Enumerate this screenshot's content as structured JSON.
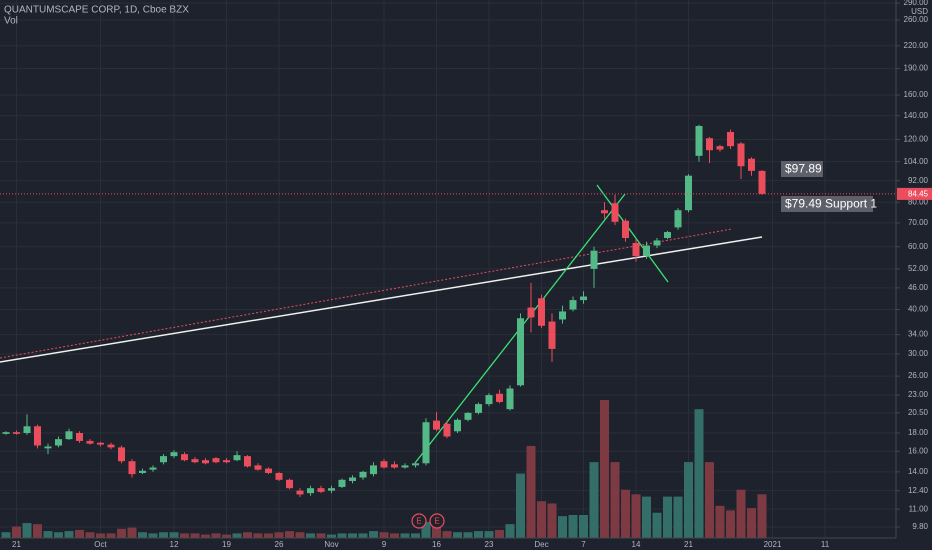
{
  "chart_data": {
    "type": "candlestick",
    "title": "QUANTUMSCAPE CORP, 1D, Cboe BZX",
    "volume_label": "Vol",
    "currency": "USD",
    "log_scale": true,
    "grid": true,
    "up_color": "#53b987",
    "down_color": "#eb4d5c",
    "volume_up_color": "#336f68",
    "volume_down_color": "#7e3a42",
    "categories": [
      null,
      "21",
      null,
      null,
      null,
      null,
      null,
      null,
      null,
      "Oct",
      null,
      null,
      null,
      null,
      null,
      null,
      "12",
      null,
      null,
      null,
      null,
      "19",
      null,
      null,
      null,
      null,
      "26",
      null,
      null,
      null,
      null,
      "Nov",
      null,
      null,
      null,
      null,
      "9",
      null,
      null,
      null,
      null,
      "16",
      null,
      null,
      null,
      null,
      "23",
      null,
      null,
      null,
      null,
      "Dec",
      null,
      null,
      null,
      "7",
      null,
      null,
      null,
      null,
      "14",
      null,
      null,
      null,
      null,
      "21",
      null,
      null,
      null,
      null,
      null,
      null,
      null,
      "2021",
      null,
      null,
      null,
      null,
      "11"
    ],
    "open": [
      17.9,
      18.1,
      18.0,
      18.8,
      16.3,
      16.6,
      17.3,
      18.0,
      17.1,
      16.9,
      16.7,
      16.4,
      15.0,
      13.9,
      14.2,
      14.9,
      15.5,
      15.7,
      15.2,
      15.1,
      15.3,
      15.1,
      15.1,
      15.5,
      14.6,
      14.3,
      13.9,
      13.3,
      12.4,
      12.2,
      12.6,
      12.4,
      12.7,
      13.2,
      13.5,
      13.8,
      15.0,
      14.7,
      14.4,
      14.6,
      14.8,
      19.5,
      19.1,
      18.2,
      19.6,
      20.5,
      21.7,
      23.2,
      21.0,
      24.5,
      40.5,
      43.0,
      37.0,
      37.5,
      40.0,
      42.5,
      52.0,
      76.0,
      79.5,
      71.0,
      61.5,
      56.5,
      60.5,
      63.5,
      68.0,
      76.0,
      108.0,
      121.0,
      115.0,
      126.0,
      117.0,
      106.0,
      98.0,
      null,
      null,
      null,
      null,
      null,
      null
    ],
    "high": [
      18.2,
      18.3,
      20.3,
      19.0,
      16.8,
      17.6,
      18.5,
      18.2,
      17.3,
      17.0,
      16.9,
      16.6,
      15.2,
      14.3,
      14.6,
      15.7,
      16.1,
      15.9,
      15.4,
      15.3,
      15.4,
      15.3,
      16.0,
      15.6,
      14.8,
      14.4,
      14.0,
      13.4,
      12.6,
      12.8,
      12.8,
      12.8,
      13.4,
      13.7,
      14.1,
      14.9,
      15.2,
      15.0,
      14.8,
      14.9,
      19.8,
      20.6,
      19.4,
      19.8,
      20.6,
      21.9,
      23.3,
      23.8,
      24.5,
      39.0,
      47.5,
      44.0,
      39.0,
      41.0,
      43.5,
      45.0,
      60.0,
      80.0,
      84.0,
      72.0,
      63.0,
      62.0,
      63.5,
      66.5,
      77.0,
      96.0,
      132.0,
      122.0,
      116.0,
      128.0,
      118.0,
      107.0,
      98.5,
      null,
      null,
      null,
      null,
      null,
      null
    ],
    "low": [
      17.8,
      17.8,
      17.8,
      16.3,
      15.7,
      16.4,
      17.2,
      16.9,
      16.7,
      16.5,
      16.2,
      14.8,
      13.5,
      13.8,
      14.0,
      14.7,
      15.3,
      15.0,
      14.8,
      14.7,
      14.8,
      14.8,
      15.0,
      14.4,
      14.1,
      13.8,
      13.2,
      12.5,
      11.9,
      12.0,
      12.2,
      12.2,
      12.6,
      13.0,
      13.3,
      13.6,
      14.3,
      14.3,
      14.3,
      14.4,
      14.6,
      18.2,
      17.4,
      18.0,
      19.4,
      20.3,
      21.4,
      21.8,
      20.8,
      24.3,
      34.5,
      35.5,
      28.5,
      36.5,
      39.5,
      41.5,
      46.0,
      72.0,
      69.0,
      62.0,
      54.5,
      55.5,
      59.5,
      63.0,
      67.0,
      75.0,
      104.0,
      103.0,
      111.0,
      113.0,
      93.0,
      95.0,
      84.0,
      null,
      null,
      null,
      null,
      null,
      null
    ],
    "close": [
      18.1,
      17.9,
      18.8,
      16.6,
      16.5,
      17.3,
      18.2,
      17.1,
      16.8,
      16.7,
      16.4,
      15.0,
      13.8,
      14.1,
      14.4,
      15.5,
      15.9,
      15.1,
      14.9,
      14.8,
      14.9,
      14.9,
      15.6,
      14.5,
      14.2,
      13.9,
      13.3,
      12.6,
      12.1,
      12.6,
      12.3,
      12.6,
      13.3,
      13.5,
      14.0,
      14.6,
      14.4,
      14.4,
      14.6,
      14.8,
      19.3,
      18.4,
      17.6,
      19.6,
      20.5,
      21.7,
      23.0,
      22.0,
      24.0,
      37.8,
      38.0,
      36.0,
      31.0,
      39.5,
      42.5,
      43.5,
      58.5,
      74.5,
      70.5,
      63.5,
      56.5,
      60.5,
      62.5,
      66.0,
      76.0,
      95.0,
      131.0,
      112.0,
      112.5,
      115.0,
      101.0,
      98.0,
      84.45,
      null,
      null,
      null,
      null,
      null,
      null
    ],
    "volume": [
      2.5,
      5,
      6.5,
      6,
      3,
      2.5,
      3,
      3.5,
      2.5,
      2,
      2,
      4,
      4.5,
      2.5,
      2,
      2.5,
      2.5,
      2,
      2,
      1.5,
      2,
      1.5,
      2,
      2.5,
      2,
      2,
      2.5,
      3,
      2.5,
      2,
      2,
      1.5,
      2,
      2,
      2,
      3,
      2.5,
      2,
      2,
      2,
      7,
      5.5,
      3,
      2.5,
      2.5,
      3,
      3,
      3.5,
      6,
      28,
      40,
      16,
      15,
      9.5,
      10,
      10,
      33,
      60,
      33,
      21,
      19,
      18,
      11,
      18,
      18,
      33,
      56,
      33,
      14,
      12,
      21,
      13,
      19,
      null,
      null,
      null,
      null,
      null,
      null
    ],
    "ylim": [
      9.13,
      295.8
    ],
    "yticks": [
      {
        "value": 290,
        "label": "290.00"
      },
      {
        "value": 260,
        "label": "260.00"
      },
      {
        "value": 220,
        "label": "220.00"
      },
      {
        "value": 190,
        "label": "190.00"
      },
      {
        "value": 160,
        "label": "160.00"
      },
      {
        "value": 140,
        "label": "140.00"
      },
      {
        "value": 120,
        "label": "120.00"
      },
      {
        "value": 104,
        "label": "104.00"
      },
      {
        "value": 92,
        "label": "92.00"
      },
      {
        "value": 80,
        "label": "80.00"
      },
      {
        "value": 70,
        "label": "70.00"
      },
      {
        "value": 60,
        "label": "60.00"
      },
      {
        "value": 52,
        "label": "52.00"
      },
      {
        "value": 46,
        "label": "46.00"
      },
      {
        "value": 40,
        "label": "40.00"
      },
      {
        "value": 34,
        "label": "34.00"
      },
      {
        "value": 30,
        "label": "30.00"
      },
      {
        "value": 26,
        "label": "26.00"
      },
      {
        "value": 23,
        "label": "23.00"
      },
      {
        "value": 20.5,
        "label": "20.50"
      },
      {
        "value": 18,
        "label": "18.00"
      },
      {
        "value": 16,
        "label": "16.00"
      },
      {
        "value": 14,
        "label": "14.00"
      },
      {
        "value": 12.4,
        "label": "12.40"
      },
      {
        "value": 11,
        "label": "11.00"
      },
      {
        "value": 9.8,
        "label": "9.80"
      }
    ],
    "last_price": 84.45,
    "annotations": [
      "$97.89",
      "$79.49 Support 1"
    ],
    "earnings": [
      "E",
      "E"
    ]
  }
}
